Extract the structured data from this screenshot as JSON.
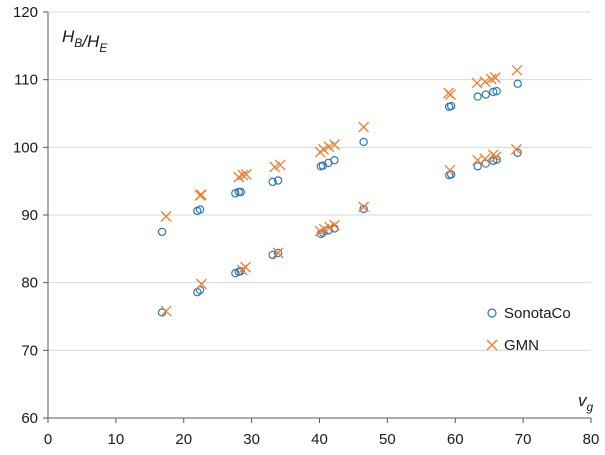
{
  "chart_data": {
    "type": "scatter",
    "title": "",
    "xlabel": {
      "main": "v",
      "sub": "g"
    },
    "ylabel": {
      "parts": [
        {
          "text": "H",
          "sub": "B"
        },
        {
          "text": "/",
          "sub": ""
        },
        {
          "text": "H",
          "sub": "E"
        }
      ]
    },
    "xlim": [
      0,
      80
    ],
    "ylim": [
      60,
      120
    ],
    "xticks": [
      0,
      10,
      20,
      30,
      40,
      50,
      60,
      70,
      80
    ],
    "yticks": [
      60,
      70,
      80,
      90,
      100,
      110,
      120
    ],
    "grid": "horizontal",
    "legend_position": "right",
    "series": [
      {
        "name": "SonotaCo",
        "marker": "circle",
        "color": "#2e75b6",
        "points": [
          [
            16.8,
            87.5
          ],
          [
            22.0,
            90.6
          ],
          [
            22.4,
            90.8
          ],
          [
            27.6,
            93.2
          ],
          [
            28.1,
            93.4
          ],
          [
            28.4,
            93.4
          ],
          [
            33.1,
            94.9
          ],
          [
            33.9,
            95.1
          ],
          [
            40.2,
            97.2
          ],
          [
            40.5,
            97.3
          ],
          [
            41.3,
            97.7
          ],
          [
            42.2,
            98.1
          ],
          [
            46.5,
            100.8
          ],
          [
            59.1,
            106.0
          ],
          [
            59.4,
            106.1
          ],
          [
            63.3,
            107.5
          ],
          [
            64.5,
            107.8
          ],
          [
            65.6,
            108.2
          ],
          [
            66.1,
            108.3
          ],
          [
            69.2,
            109.4
          ],
          [
            16.8,
            75.6
          ],
          [
            22.0,
            78.6
          ],
          [
            22.4,
            78.9
          ],
          [
            27.6,
            81.4
          ],
          [
            28.1,
            81.6
          ],
          [
            28.4,
            81.7
          ],
          [
            33.1,
            84.1
          ],
          [
            33.9,
            84.4
          ],
          [
            40.2,
            87.2
          ],
          [
            40.5,
            87.4
          ],
          [
            41.3,
            87.7
          ],
          [
            42.2,
            88.0
          ],
          [
            46.5,
            90.9
          ],
          [
            59.1,
            95.9
          ],
          [
            59.4,
            96.0
          ],
          [
            63.3,
            97.2
          ],
          [
            64.5,
            97.6
          ],
          [
            65.6,
            98.0
          ],
          [
            66.1,
            98.2
          ],
          [
            69.2,
            99.2
          ]
        ]
      },
      {
        "name": "GMN",
        "marker": "x",
        "color": "#ed7d31",
        "points": [
          [
            17.4,
            89.8
          ],
          [
            22.4,
            92.9
          ],
          [
            22.6,
            93.0
          ],
          [
            28.1,
            95.6
          ],
          [
            28.7,
            95.9
          ],
          [
            29.2,
            96.0
          ],
          [
            33.4,
            97.1
          ],
          [
            34.2,
            97.4
          ],
          [
            40.1,
            99.3
          ],
          [
            40.6,
            99.7
          ],
          [
            41.4,
            100.1
          ],
          [
            42.2,
            100.4
          ],
          [
            46.5,
            103.0
          ],
          [
            59.0,
            108.0
          ],
          [
            59.3,
            107.8
          ],
          [
            63.2,
            109.5
          ],
          [
            64.4,
            109.7
          ],
          [
            65.3,
            110.1
          ],
          [
            65.9,
            110.3
          ],
          [
            69.1,
            111.4
          ],
          [
            17.4,
            75.8
          ],
          [
            22.6,
            79.8
          ],
          [
            28.6,
            81.9
          ],
          [
            29.1,
            82.3
          ],
          [
            33.9,
            84.4
          ],
          [
            40.1,
            87.6
          ],
          [
            40.7,
            87.9
          ],
          [
            41.5,
            88.2
          ],
          [
            42.2,
            88.5
          ],
          [
            46.5,
            91.2
          ],
          [
            59.2,
            96.6
          ],
          [
            63.3,
            98.1
          ],
          [
            64.4,
            98.3
          ],
          [
            65.6,
            98.9
          ],
          [
            66.0,
            98.6
          ],
          [
            69.0,
            99.7
          ]
        ]
      }
    ]
  }
}
